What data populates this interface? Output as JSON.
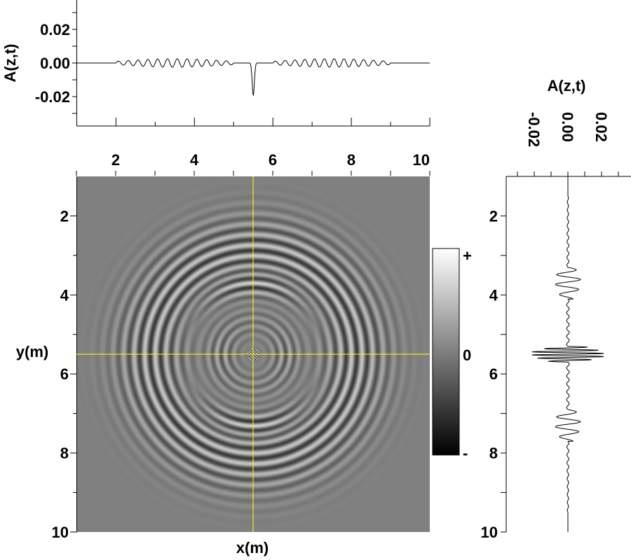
{
  "chart_data": [
    {
      "type": "line",
      "name": "top-trace",
      "title": "",
      "xlabel": "",
      "ylabel": "A(z,t)",
      "xlim": [
        1,
        10
      ],
      "ylim": [
        -0.0375,
        0.0375
      ],
      "yticks": [
        "0.02",
        "0.00",
        "-0.02"
      ],
      "ytick_values": [
        0.02,
        0.0,
        -0.02
      ],
      "model": {
        "packets": [
          {
            "start": 2.0,
            "end": 5.0,
            "amplitude": 0.0025,
            "period": 0.25
          },
          {
            "start": 6.0,
            "end": 9.0,
            "amplitude": 0.0025,
            "period": 0.25
          }
        ],
        "spike": {
          "center": 5.5,
          "value": -0.019,
          "width": 0.04
        }
      }
    },
    {
      "type": "heatmap",
      "name": "wavefield",
      "xlabel": "x(m)",
      "ylabel": "y(m)",
      "xlim": [
        1,
        10
      ],
      "ylim": [
        1,
        10
      ],
      "xticks": [
        "2",
        "4",
        "6",
        "8",
        "10"
      ],
      "xtick_values": [
        2,
        4,
        6,
        8,
        10
      ],
      "yticks": [
        "2",
        "4",
        "6",
        "8",
        "10"
      ],
      "ytick_values": [
        2,
        4,
        6,
        8,
        10
      ],
      "source": [
        5.5,
        5.5
      ],
      "crosshair": {
        "x": 5.5,
        "y": 5.5,
        "color": "#ffff00"
      },
      "colorbar": {
        "labels": [
          "+",
          "0",
          "-"
        ],
        "colormap": "gray"
      }
    },
    {
      "type": "line",
      "name": "right-trace",
      "title": "A(z,t)",
      "xlim": [
        -0.0375,
        0.0375
      ],
      "ylim": [
        1,
        10
      ],
      "xticks": [
        "-0.02",
        "0.00",
        "0.02"
      ],
      "xtick_values": [
        -0.02,
        0.0,
        0.02
      ],
      "yticks": [
        "2",
        "4",
        "6",
        "8",
        "10"
      ],
      "ytick_values": [
        2,
        4,
        6,
        8,
        10
      ],
      "model": {
        "background": {
          "start": 1.5,
          "end": 9.5,
          "amplitude": 0.0008,
          "period": 0.2
        },
        "packets": [
          {
            "start": 3.3,
            "end": 4.1,
            "amplitude": 0.008,
            "period": 0.25
          },
          {
            "start": 6.9,
            "end": 7.7,
            "amplitude": 0.008,
            "period": 0.25
          },
          {
            "start": 5.3,
            "end": 5.7,
            "amplitude": 0.022,
            "period": 0.08
          }
        ]
      }
    }
  ]
}
